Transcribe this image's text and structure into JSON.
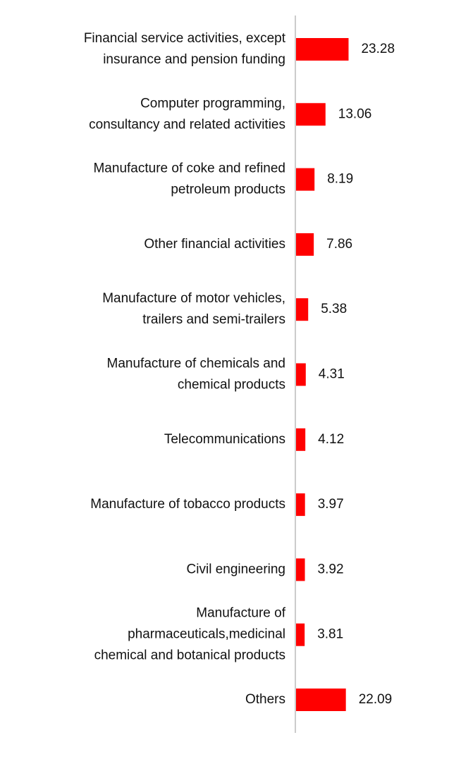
{
  "chart_data": {
    "type": "bar",
    "orientation": "horizontal",
    "title": "",
    "xlabel": "",
    "ylabel": "",
    "grid": false,
    "legend": "none",
    "bar_color": "#ff0000",
    "axis_color": "#cccccc",
    "categories": [
      [
        "Financial service activities, except",
        "insurance and pension funding"
      ],
      [
        "Computer programming,",
        "consultancy and related activities"
      ],
      [
        "Manufacture of coke and refined",
        "petroleum products"
      ],
      [
        "Other financial activities"
      ],
      [
        "Manufacture of motor vehicles,",
        "trailers and semi-trailers"
      ],
      [
        "Manufacture of chemicals and",
        "chemical products"
      ],
      [
        "Telecommunications"
      ],
      [
        "Manufacture of tobacco products"
      ],
      [
        "Civil engineering"
      ],
      [
        "Manufacture of",
        "pharmaceuticals,medicinal",
        "chemical and botanical products"
      ],
      [
        "Others"
      ]
    ],
    "values": [
      23.28,
      13.06,
      8.19,
      7.86,
      5.38,
      4.31,
      4.12,
      3.97,
      3.92,
      3.81,
      22.09
    ],
    "value_labels": [
      "23.28",
      "13.06",
      "8.19",
      "7.86",
      "5.38",
      "4.31",
      "4.12",
      "3.97",
      "3.92",
      "3.81",
      "22.09"
    ]
  }
}
